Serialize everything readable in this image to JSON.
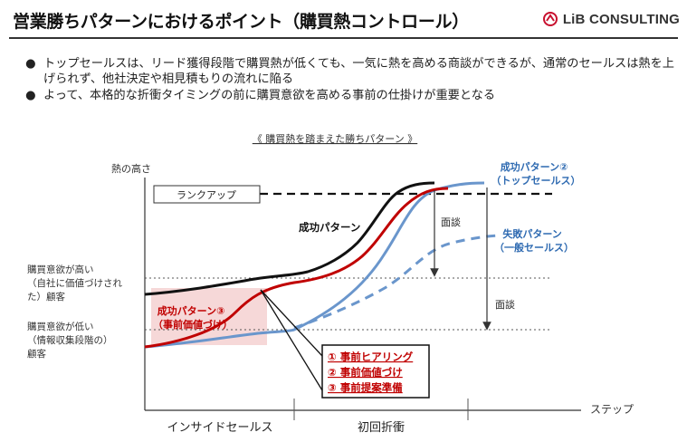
{
  "header": {
    "title": "営業勝ちパターンにおけるポイント（購買熱コントロール）",
    "logo_text": "LiB CONSULTING",
    "logo_color": "#c8102e"
  },
  "bullets": [
    "トップセールスは、リード獲得段階で購買熱が低くても、一気に熱を高める商談ができるが、通常のセールスは熱を上げられず、他社決定や相見積もりの流れに陥る",
    "よって、本格的な折衝タイミングの前に購買意欲を高める事前の仕掛けが重要となる"
  ],
  "diagram": {
    "caption": "《 購買熱を踏まえた勝ちパターン 》",
    "y_axis_label": "熱の高さ",
    "x_axis_label": "ステップ",
    "rank_up_label": "ランクアップ",
    "high_label": [
      "購買意欲が高い",
      "（自社に価値づけされ",
      "た）顧客"
    ],
    "low_label": [
      "購買意欲が低い",
      "（情報収集段階の）",
      "顧客"
    ],
    "phases": [
      "インサイドセールス",
      "初回折衝"
    ],
    "negotiation_labels": [
      "面談",
      "面談"
    ],
    "series": {
      "success": {
        "label": "成功パターン",
        "color": "#111111"
      },
      "success_top": {
        "label": [
          "成功パターン②",
          "（トップセールス）"
        ],
        "color": "#2e6ab1"
      },
      "failure": {
        "label": [
          "失敗パターン",
          "（一般セールス）"
        ],
        "color": "#2e6ab1"
      },
      "success_prevalue": {
        "label": [
          "成功パターン③",
          "（事前価値づけ）"
        ],
        "color": "#c00000"
      }
    },
    "steps_box": {
      "items": [
        "① 事前ヒアリング",
        "② 事前価値づけ",
        "③ 事前提案準備"
      ],
      "color": "#c00000"
    },
    "colors": {
      "blue_line": "#6a96cc",
      "red_line": "#c00000",
      "highlight": "#f6d8d8"
    }
  }
}
